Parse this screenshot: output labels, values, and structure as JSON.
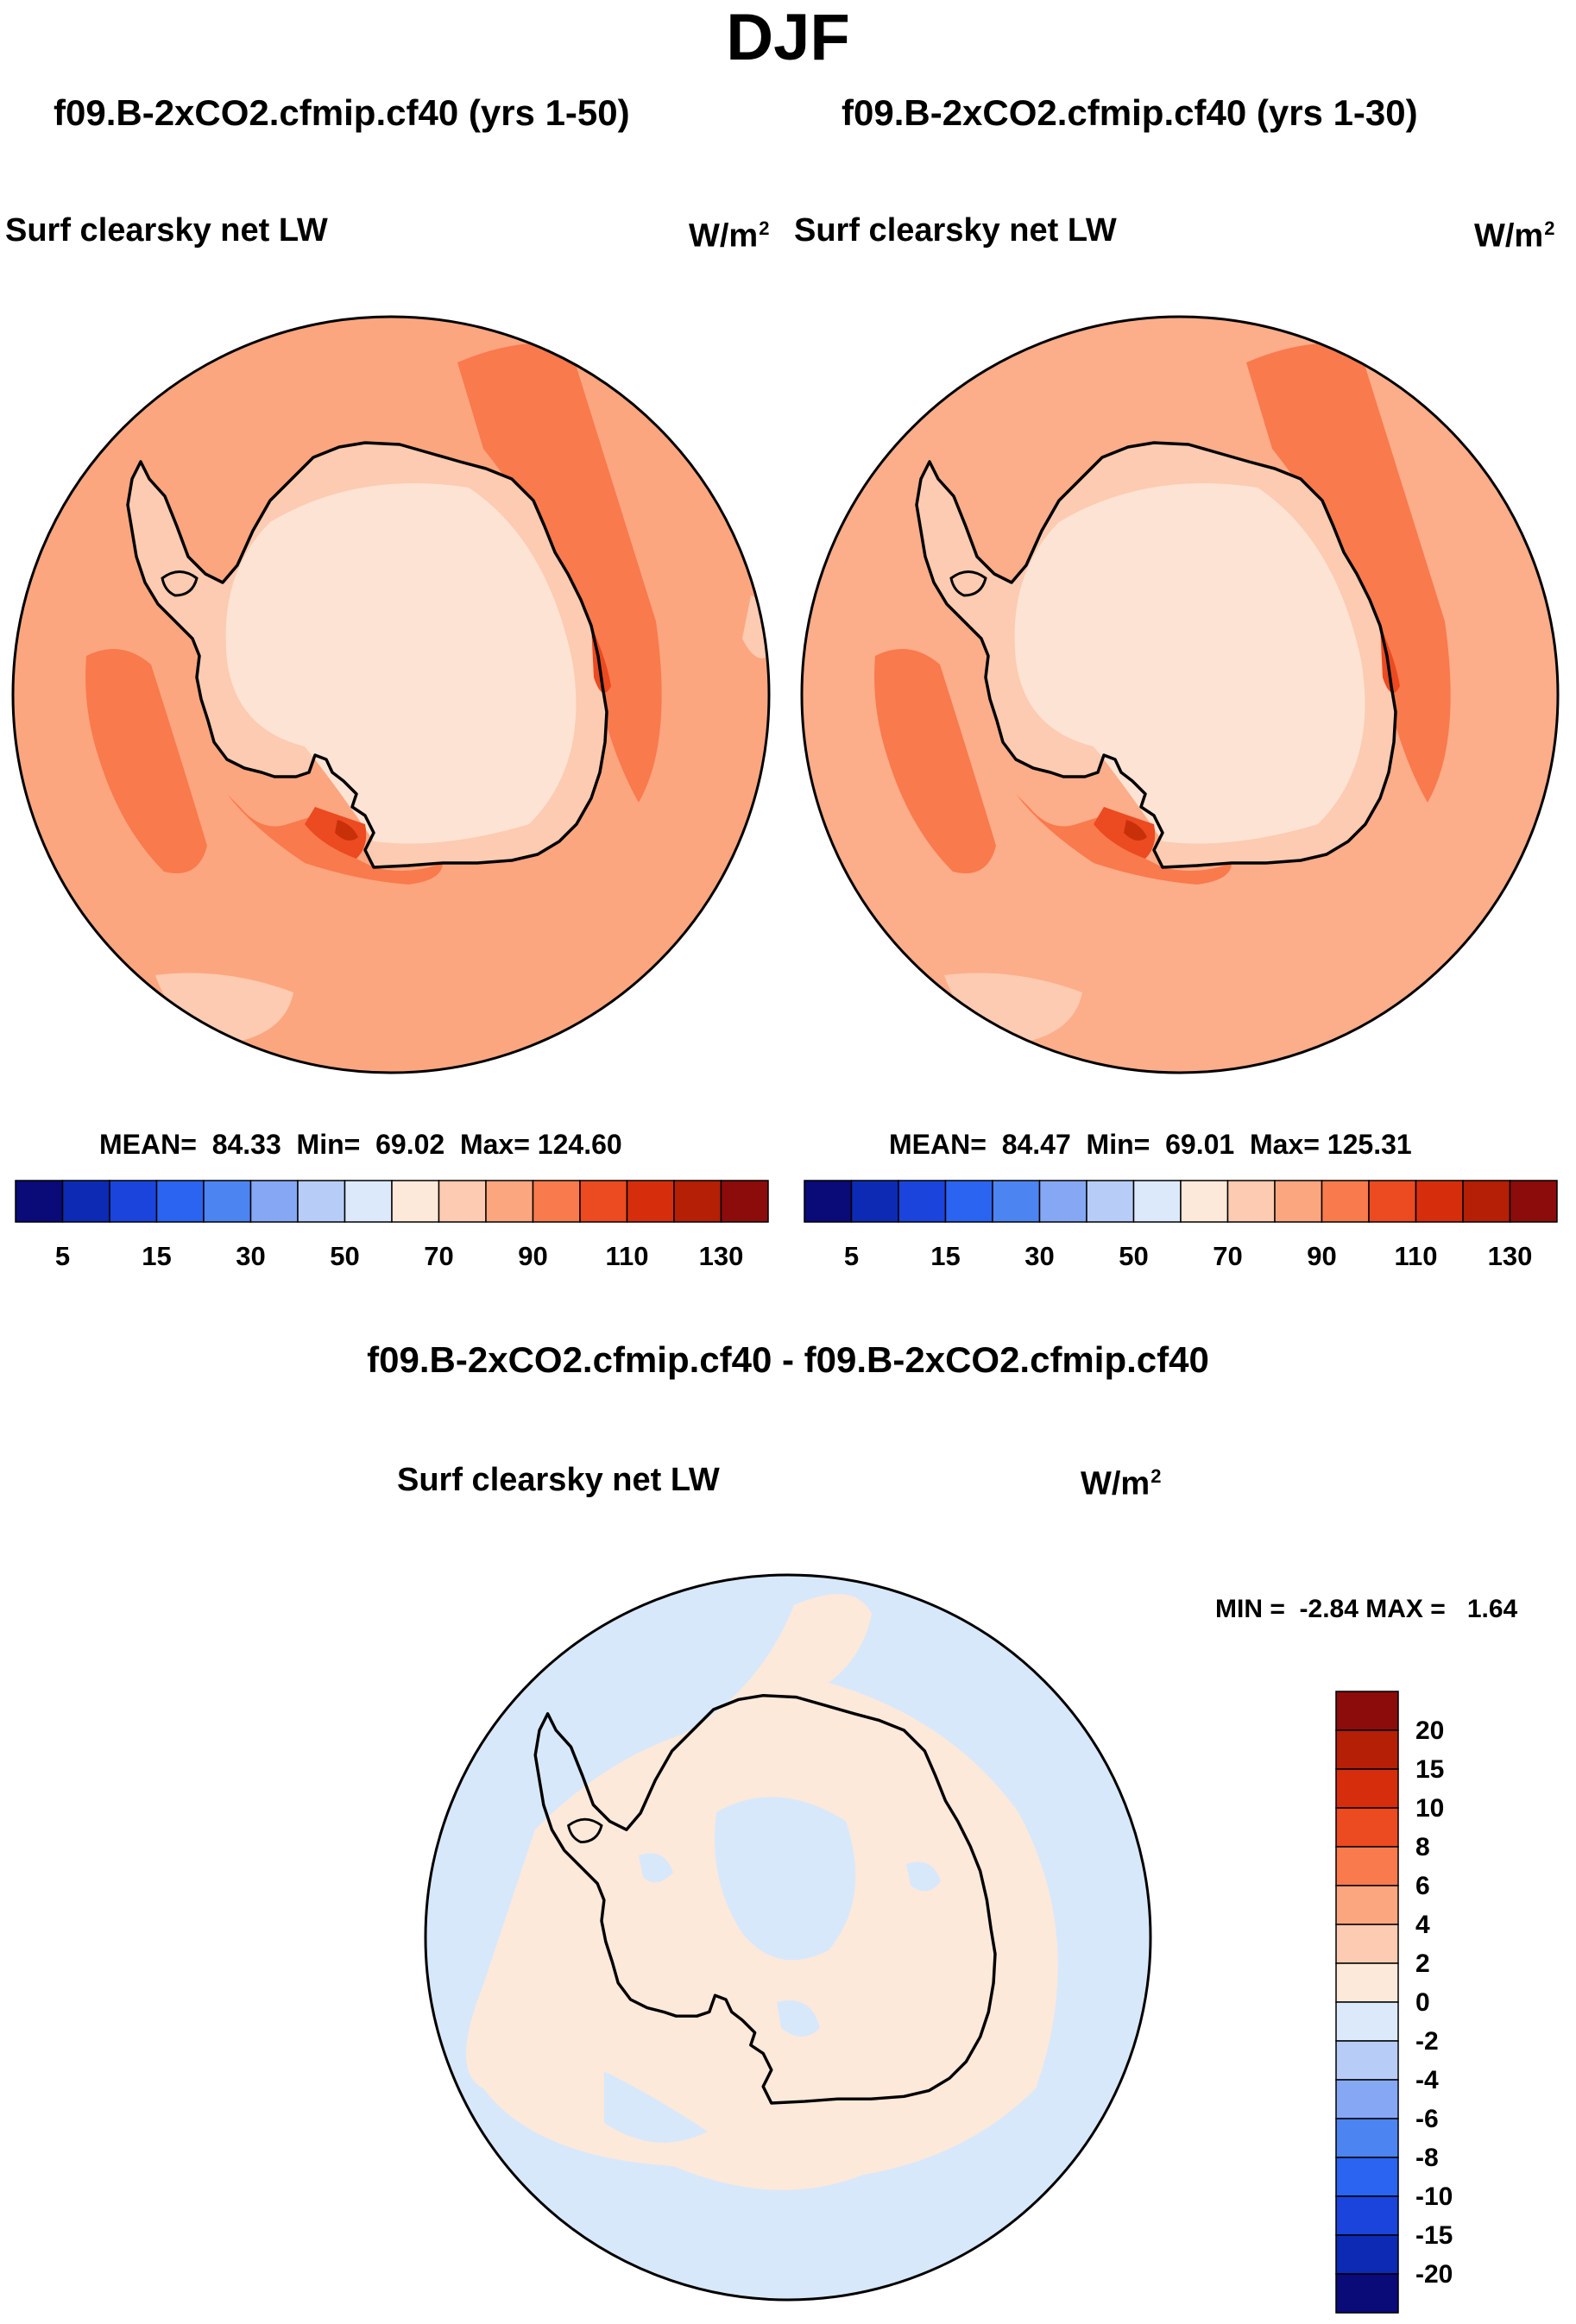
{
  "figure": {
    "season": "DJF"
  },
  "panels": [
    {
      "case": "f09.B-2xCO2.cfmip.cf40 (yrs 1-50)",
      "variable": "Surf clearsky net LW",
      "units": "W/m",
      "units_exp": "2",
      "mean_label": "MEAN=",
      "mean": "84.33",
      "min_label": "Min=",
      "min": "69.02",
      "max_label": "Max=",
      "max": "124.60"
    },
    {
      "case": "f09.B-2xCO2.cfmip.cf40 (yrs 1-30)",
      "variable": "Surf clearsky net LW",
      "units": "W/m",
      "units_exp": "2",
      "mean_label": "MEAN=",
      "mean": "84.47",
      "min_label": "Min=",
      "min": "69.01",
      "max_label": "Max=",
      "max": "125.31"
    }
  ],
  "difference": {
    "title": "f09.B-2xCO2.cfmip.cf40 - f09.B-2xCO2.cfmip.cf40",
    "variable": "Surf clearsky net LW",
    "units": "W/m",
    "units_exp": "2",
    "min_label": "MIN =",
    "min": "-2.84",
    "max_label": "MAX =",
    "max": "1.64"
  },
  "colorbar_top": {
    "colors": [
      "#0a0a78",
      "#0c2ab4",
      "#1a44dc",
      "#2a64f0",
      "#4c84f2",
      "#86a8f4",
      "#b8ccf8",
      "#dce9fb",
      "#fde9da",
      "#fccbb1",
      "#fca680",
      "#f97a4d",
      "#ec4a20",
      "#d62e0c",
      "#b41f06",
      "#8c0b0b"
    ],
    "tick_labels": [
      "5",
      "15",
      "30",
      "50",
      "70",
      "90",
      "110",
      "130"
    ]
  },
  "colorbar_diff": {
    "colors_top_to_bottom": [
      "#8c0b0b",
      "#b41f06",
      "#d62e0c",
      "#ec4a20",
      "#f97a4d",
      "#fca680",
      "#fccbb1",
      "#fde9da",
      "#dce9fb",
      "#b8ccf8",
      "#86a8f4",
      "#4c84f2",
      "#2a64f0",
      "#1a44dc",
      "#0c2ab4",
      "#0a0a78"
    ],
    "tick_labels": [
      "20",
      "15",
      "10",
      "8",
      "6",
      "4",
      "2",
      "0",
      "-2",
      "-4",
      "-6",
      "-8",
      "-10",
      "-15",
      "-20"
    ]
  },
  "map_colors": {
    "ocean_top": "#fca680",
    "ocean_top_right": "#fcad8a",
    "high": "#f97a4d",
    "peak": "#ec4a20",
    "peak2": "#c8300a",
    "ice": "#fccbb1",
    "low": "#fde3d4",
    "diff_neg": "#d8e8fb",
    "diff_pos": "#fde9da",
    "coast": "#000000"
  }
}
